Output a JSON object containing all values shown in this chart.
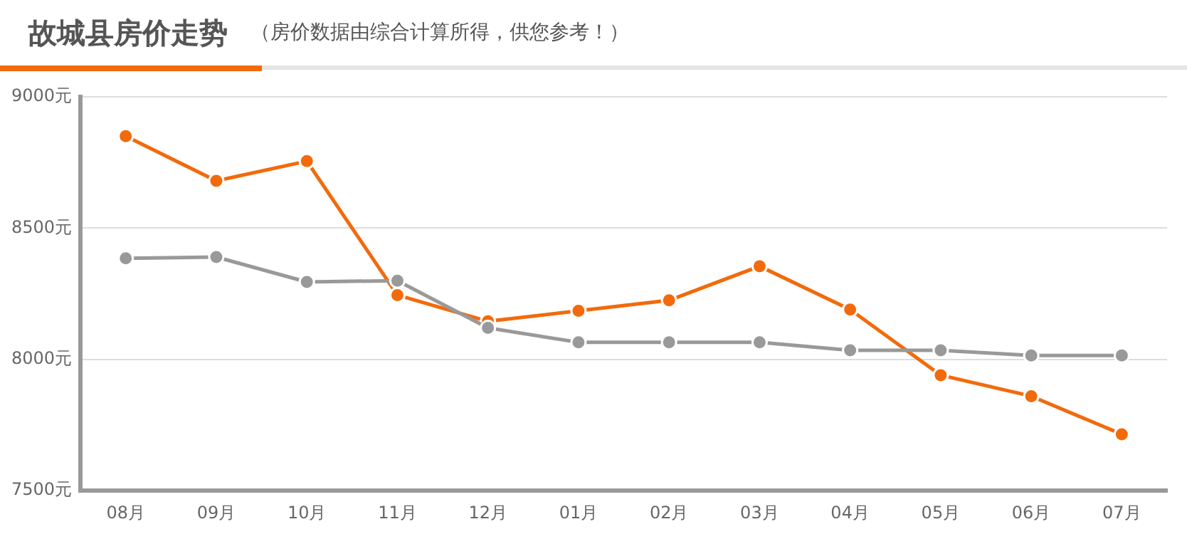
{
  "chart_data": {
    "type": "line",
    "title": "故城县房价走势",
    "subtitle": "（房价数据由综合计算所得，供您参考！）",
    "categories": [
      "08月",
      "09月",
      "10月",
      "11月",
      "12月",
      "01月",
      "02月",
      "03月",
      "04月",
      "05月",
      "06月",
      "07月"
    ],
    "series": [
      {
        "color": "#f26a0c",
        "values": [
          8850,
          8680,
          8755,
          8245,
          8145,
          8185,
          8225,
          8355,
          8190,
          7940,
          7860,
          7715
        ]
      },
      {
        "color": "#999999",
        "values": [
          8385,
          8390,
          8295,
          8300,
          8120,
          8065,
          8065,
          8065,
          8035,
          8035,
          8015,
          8015
        ]
      }
    ],
    "ylim": [
      7500,
      9000
    ],
    "yticks": [
      {
        "value": 7500,
        "label": "7500元"
      },
      {
        "value": 8000,
        "label": "8000元"
      },
      {
        "value": 8500,
        "label": "8500元"
      },
      {
        "value": 9000,
        "label": "9000元"
      }
    ],
    "grid": "y",
    "legend": false,
    "marker": "circle",
    "line_style": "solid"
  }
}
